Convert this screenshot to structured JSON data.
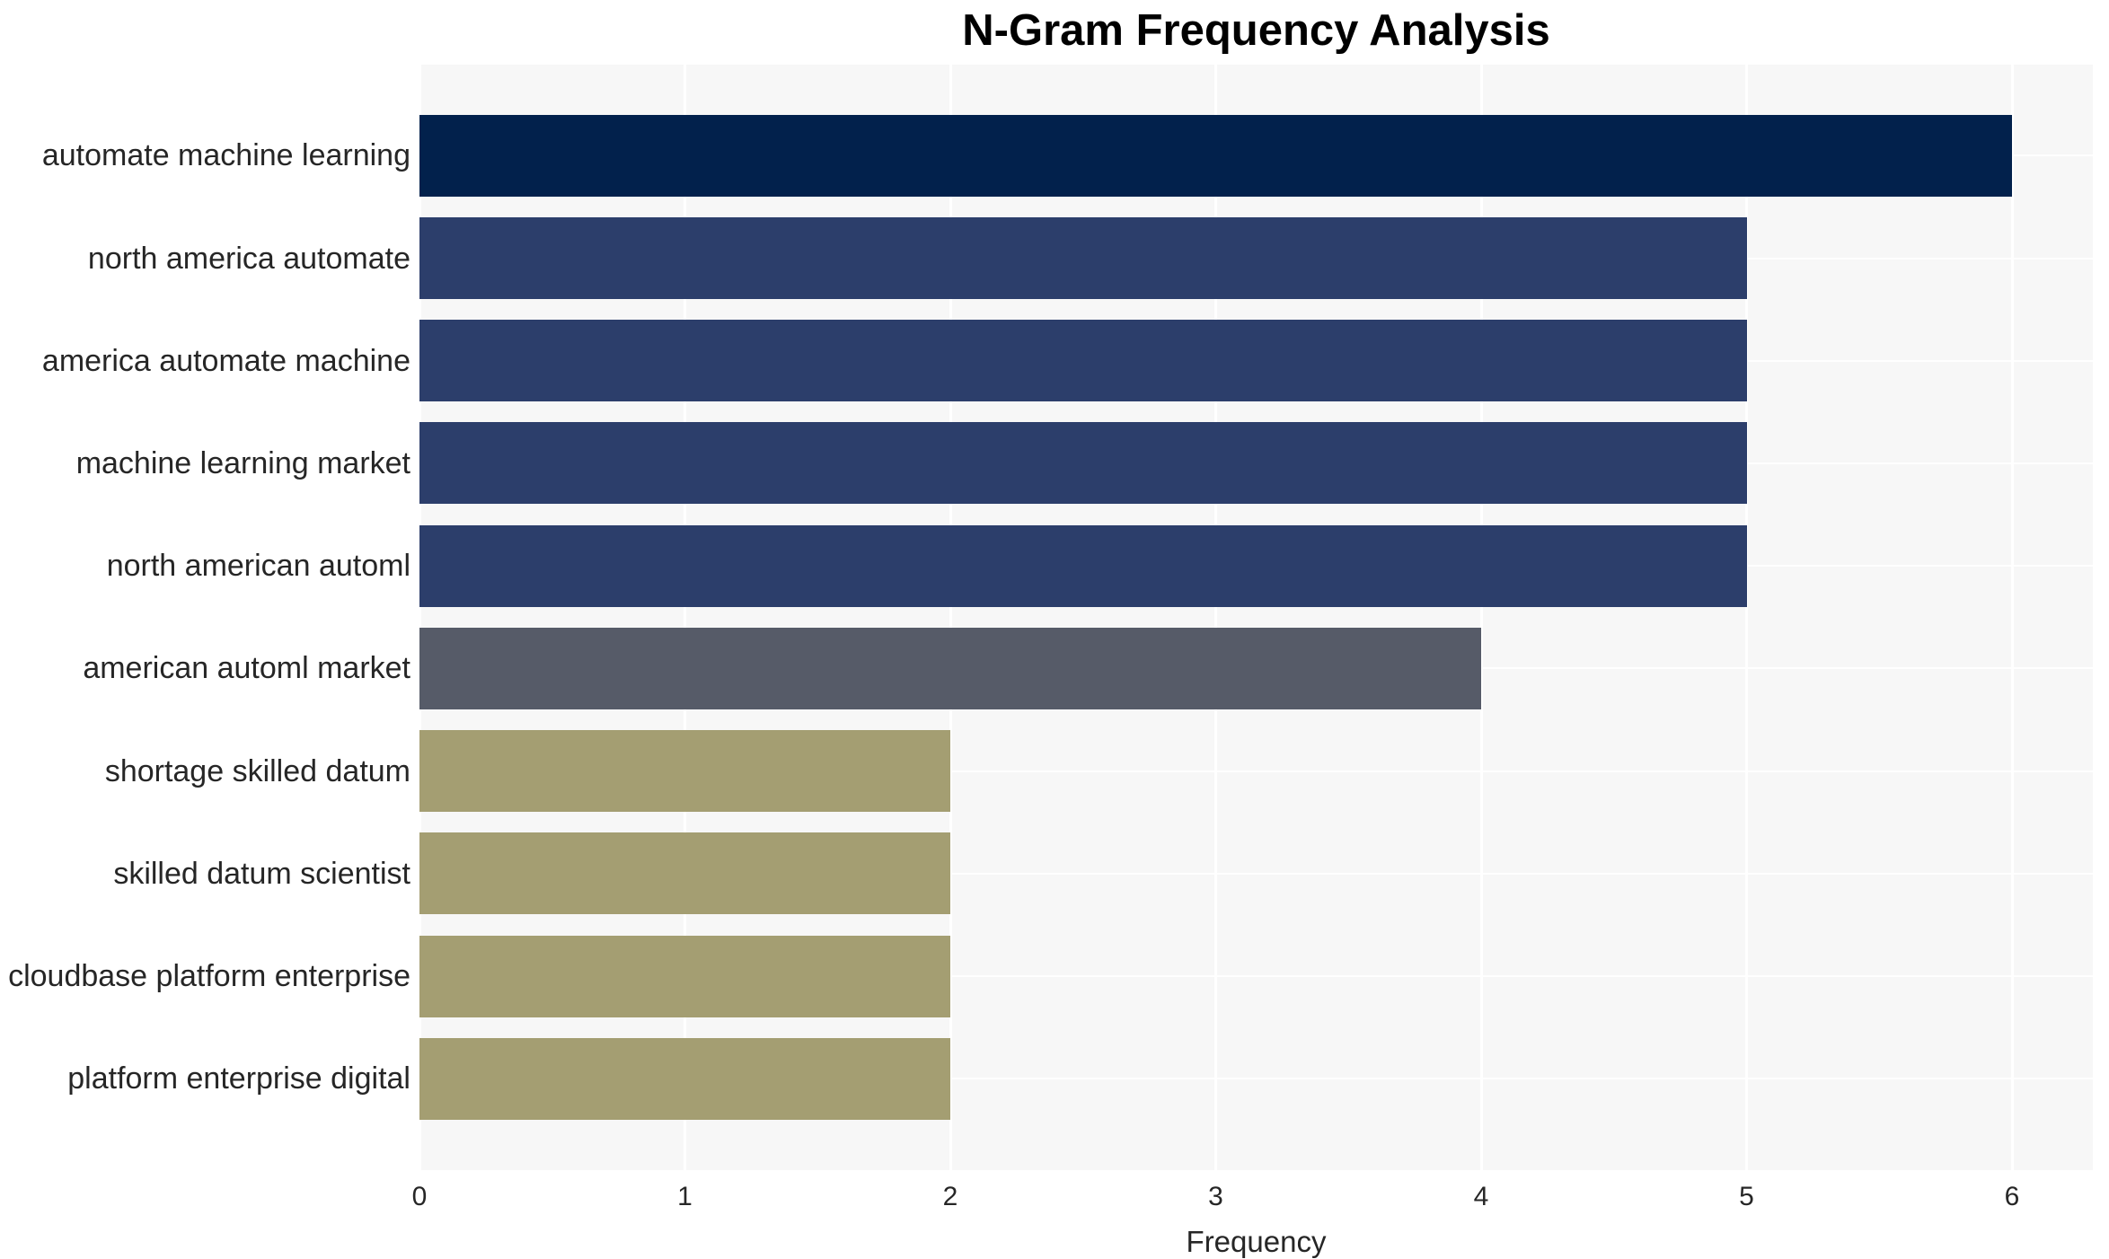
{
  "chart_data": {
    "type": "bar",
    "orientation": "horizontal",
    "title": "N-Gram Frequency Analysis",
    "xlabel": "Frequency",
    "ylabel": "",
    "x_ticks": [
      0,
      1,
      2,
      3,
      4,
      5,
      6
    ],
    "xlim": [
      0,
      6.3
    ],
    "grid": "on",
    "legend": "none",
    "categories": [
      "automate machine learning",
      "north america automate",
      "america automate machine",
      "machine learning market",
      "north american automl",
      "american automl market",
      "shortage skilled datum",
      "skilled datum scientist",
      "cloudbase platform enterprise",
      "platform enterprise digital"
    ],
    "values": [
      6,
      5,
      5,
      5,
      5,
      4,
      2,
      2,
      2,
      2
    ],
    "bar_colors": [
      "#02214c",
      "#2c3e6b",
      "#2c3e6b",
      "#2c3e6b",
      "#2c3e6b",
      "#565b68",
      "#a49e72",
      "#a49e72",
      "#a49e72",
      "#a49e72"
    ]
  },
  "colors": {
    "page_background": "#ffffff",
    "plot_background": "#f7f7f7",
    "gridline": "#ffffff",
    "title_text": "#000000",
    "axis_text": "#262626"
  }
}
